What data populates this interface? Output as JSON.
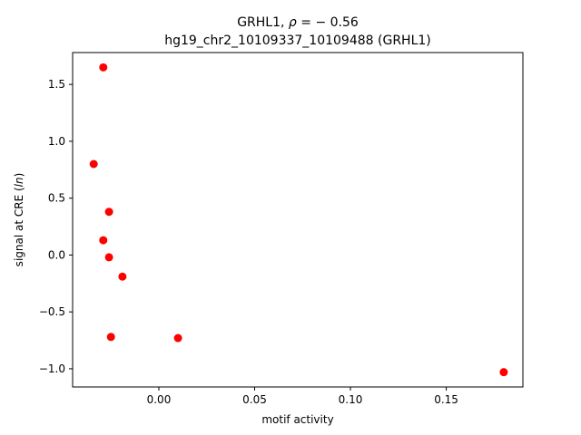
{
  "chart_data": {
    "type": "scatter",
    "title_line1": "GRHL1, ρ = − 0.56",
    "title_line2": "hg19_chr2_10109337_10109488 (GRHL1)",
    "xlabel": "motif activity",
    "ylabel": "signal at CRE (ln)",
    "xlim": [
      -0.045,
      0.19
    ],
    "ylim": [
      -1.16,
      1.78
    ],
    "xticks": [
      0.0,
      0.05,
      0.1,
      0.15
    ],
    "xtick_labels": [
      "0.00",
      "0.05",
      "0.10",
      "0.15"
    ],
    "yticks": [
      -1.0,
      -0.5,
      0.0,
      0.5,
      1.0,
      1.5
    ],
    "ytick_labels": [
      "−1.0",
      "−0.5",
      "0.0",
      "0.5",
      "1.0",
      "1.5"
    ],
    "marker_color": "#ff0000",
    "grid": false,
    "points": [
      {
        "x": -0.029,
        "y": 1.65
      },
      {
        "x": -0.034,
        "y": 0.8
      },
      {
        "x": -0.026,
        "y": 0.38
      },
      {
        "x": -0.029,
        "y": 0.13
      },
      {
        "x": -0.026,
        "y": -0.02
      },
      {
        "x": -0.019,
        "y": -0.19
      },
      {
        "x": -0.025,
        "y": -0.72
      },
      {
        "x": 0.01,
        "y": -0.73
      },
      {
        "x": 0.18,
        "y": -1.03
      }
    ]
  }
}
